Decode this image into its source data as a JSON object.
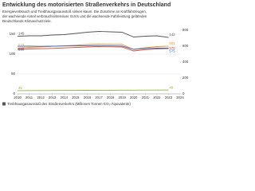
{
  "chart_data": {
    "type": "line",
    "title": "Entwicklung des motorisierten Straßenverkehrs in Deutschland",
    "subtitle": [
      "Energieverbrauch und Treibhausgasausstoß sinken kaum. Die Zunahme an Kraftfahrzeugen,",
      "der wachsende Anteil verbrauchsintensiver SUVs und die wachsende Fahrleistung gefährden",
      "Deutschlands Klimaschutzziele."
    ],
    "x": [
      2010,
      2011,
      2012,
      2013,
      2014,
      2015,
      2016,
      2017,
      2018,
      2019,
      2020,
      2021,
      2022,
      2023
    ],
    "xlim": [
      2010,
      2024
    ],
    "xticks": [
      2010,
      2011,
      2012,
      2013,
      2014,
      2015,
      2016,
      2017,
      2018,
      2019,
      2020,
      2021,
      2022,
      2023,
      2024
    ],
    "ylim": [
      0,
      160
    ],
    "yticks": [
      0,
      50,
      100,
      150
    ],
    "y2lim": [
      0,
      800
    ],
    "y2ticks": [
      0,
      200,
      400,
      600,
      800
    ],
    "grid": true,
    "series": [
      {
        "name": "Treibhausgasausstoß des Straßenverkehrs (Millionen Tonnen CO₂-Äquivalente)",
        "color": "#555555",
        "values": [
          145,
          146,
          146,
          148,
          149,
          152,
          155,
          157,
          156,
          155,
          143,
          145,
          146,
          142
        ]
      },
      {
        "color": "#f08a24",
        "axis": "y2",
        "values": [
          577,
          585,
          590,
          598,
          605,
          612,
          620,
          625,
          623,
          622,
          560,
          580,
          595,
          601
        ]
      },
      {
        "color": "#d9482b",
        "axis": "y2",
        "values": [
          560,
          565,
          568,
          572,
          578,
          584,
          590,
          594,
          592,
          590,
          540,
          556,
          566,
          570
        ]
      },
      {
        "color": "#2e6fd0",
        "axis": "y2",
        "values": [
          599,
          600,
          598,
          600,
          602,
          604,
          606,
          606,
          604,
          602,
          560,
          570,
          575,
          575
        ]
      },
      {
        "color": "#8db33a",
        "axis": "y2",
        "values": [
          41,
          42,
          42,
          43,
          44,
          44,
          45,
          46,
          46,
          47,
          47,
          48,
          48,
          49
        ]
      }
    ]
  }
}
